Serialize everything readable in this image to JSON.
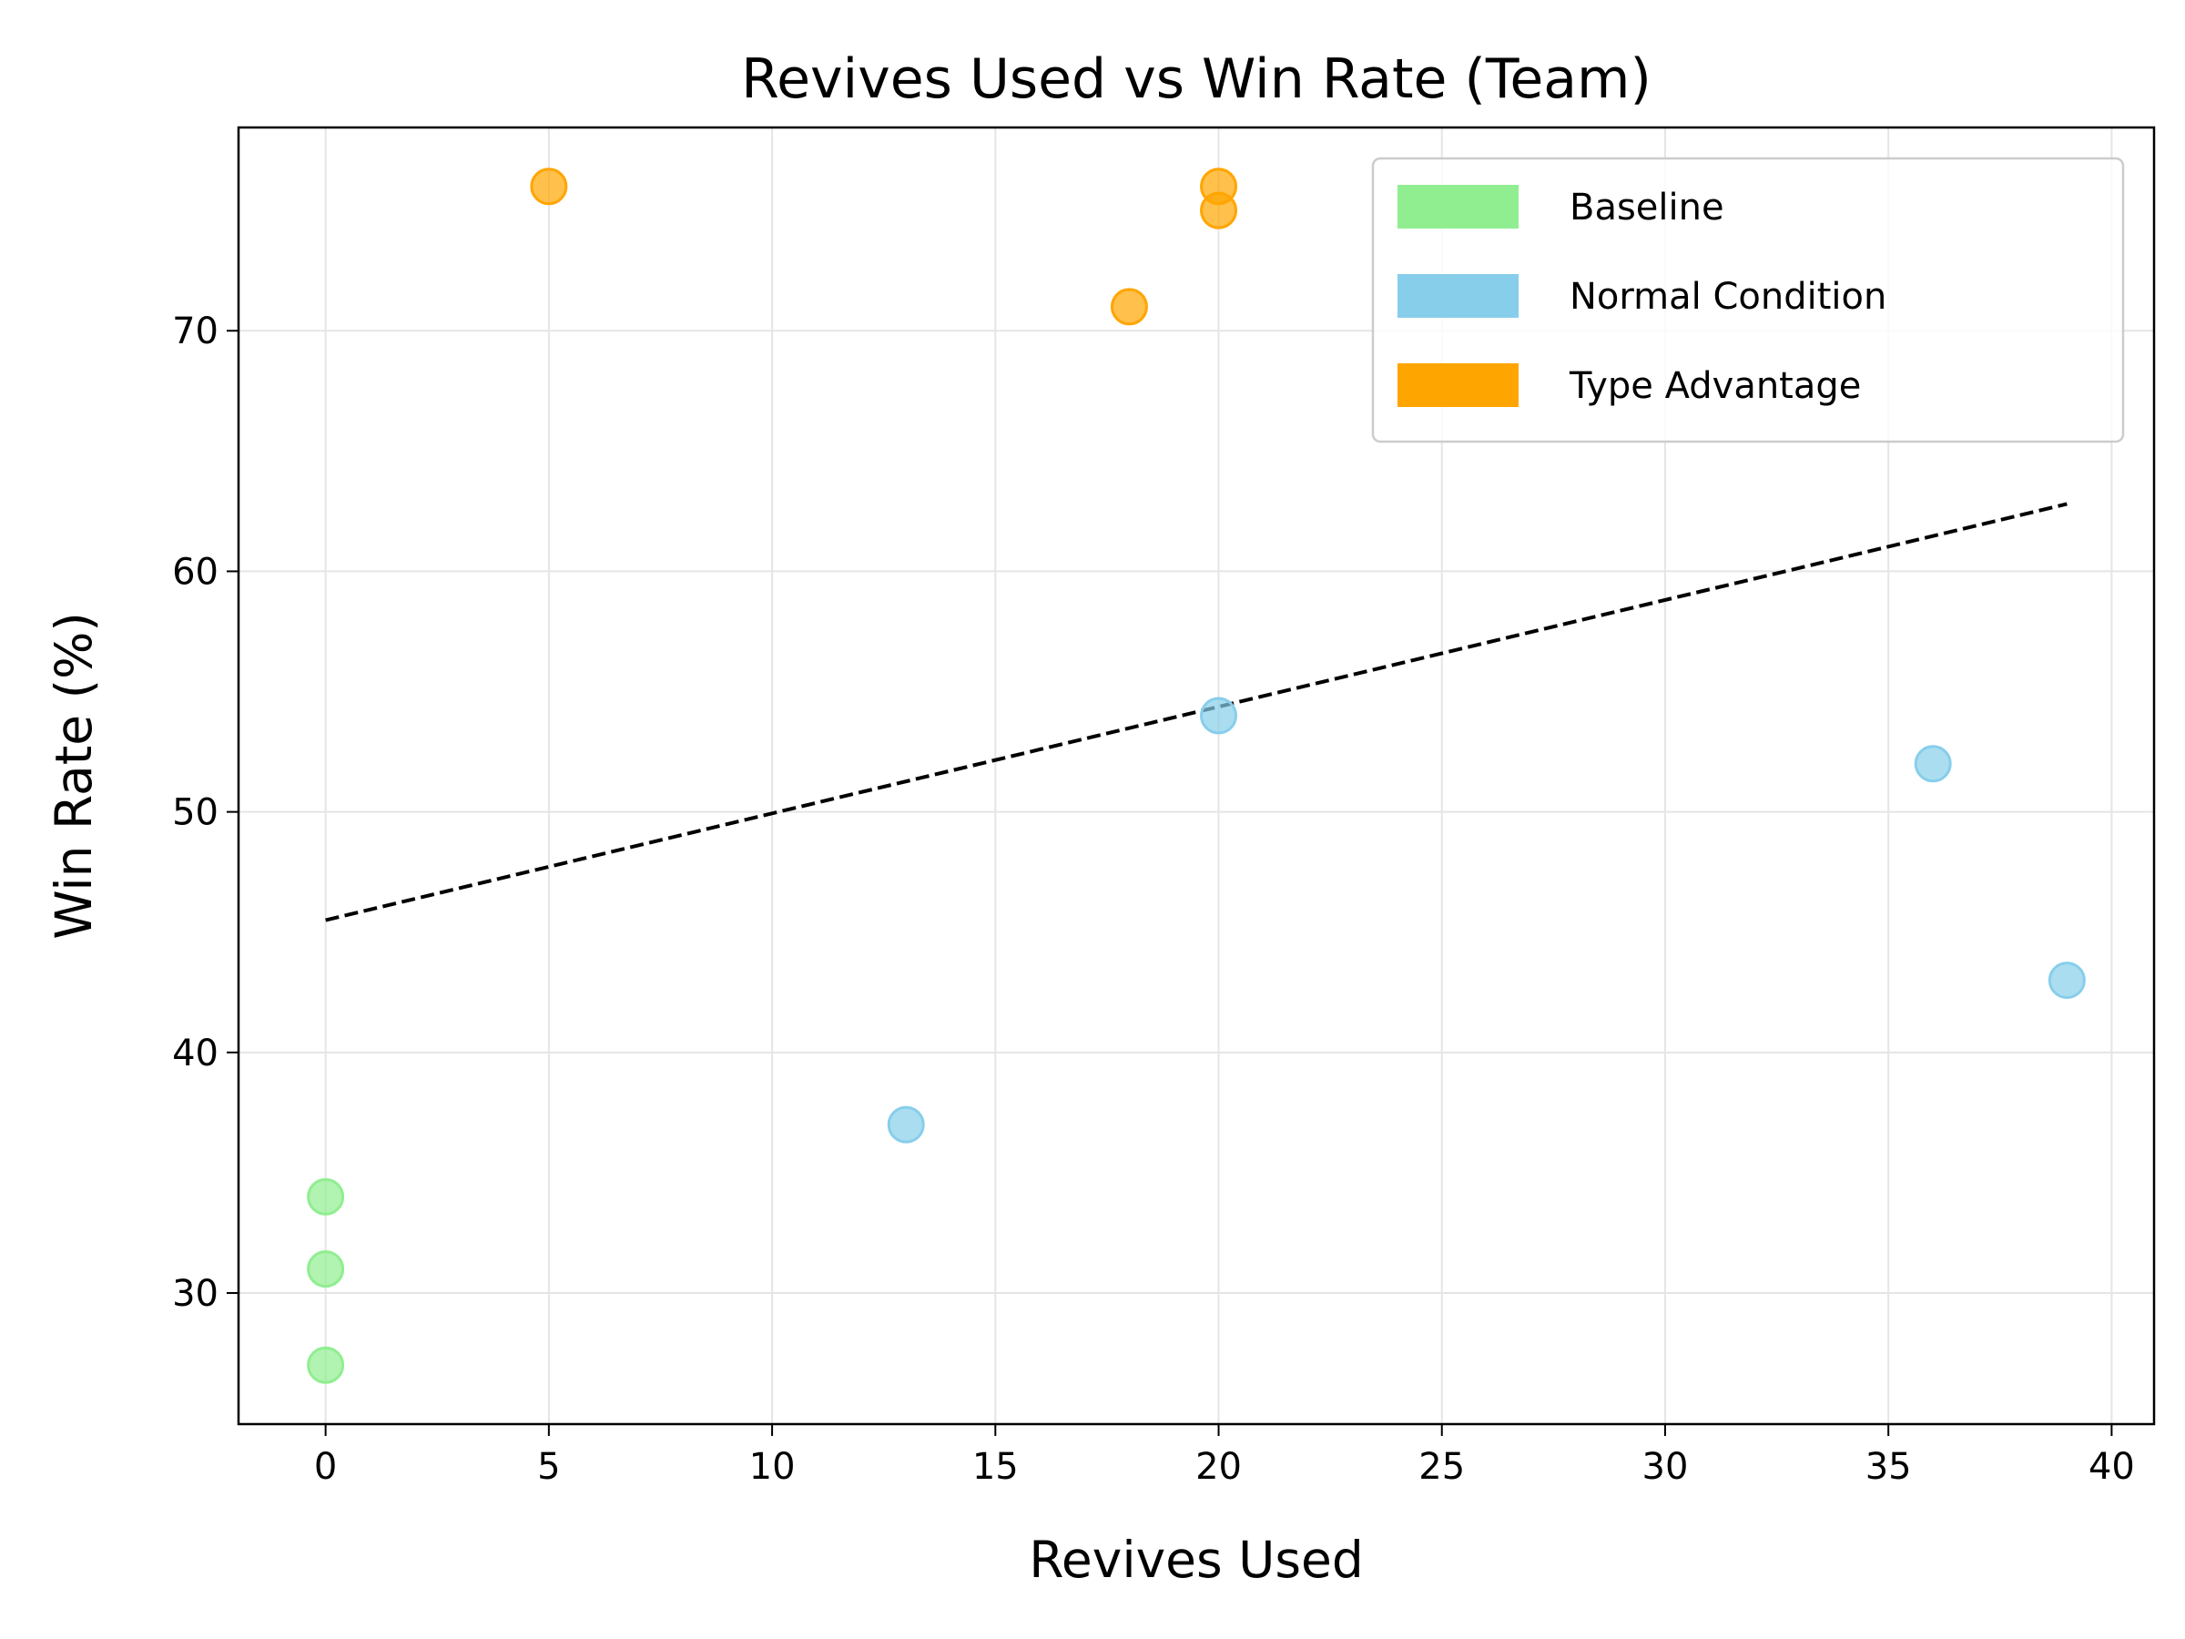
{
  "chart_data": {
    "type": "scatter",
    "title": "Revives Used vs Win Rate (Team)",
    "xlabel": "Revives Used",
    "ylabel": "Win Rate (%)",
    "xlim": [
      -1.95,
      40.95
    ],
    "ylim": [
      24.55,
      78.45
    ],
    "xticks": [
      0,
      5,
      10,
      15,
      20,
      25,
      30,
      35,
      40
    ],
    "yticks": [
      30,
      40,
      50,
      60,
      70
    ],
    "grid": true,
    "legend_position": "top-right",
    "series": [
      {
        "name": "Baseline",
        "color": "#90ee90",
        "points": [
          {
            "x": 0,
            "y": 34
          },
          {
            "x": 0,
            "y": 31
          },
          {
            "x": 0,
            "y": 27
          }
        ]
      },
      {
        "name": "Normal Condition",
        "color": "#87ceeb",
        "points": [
          {
            "x": 13,
            "y": 37
          },
          {
            "x": 20,
            "y": 54
          },
          {
            "x": 36,
            "y": 52
          },
          {
            "x": 39,
            "y": 43
          }
        ]
      },
      {
        "name": "Type Advantage",
        "color": "#ffa500",
        "points": [
          {
            "x": 5,
            "y": 76
          },
          {
            "x": 18,
            "y": 71
          },
          {
            "x": 20,
            "y": 76
          },
          {
            "x": 20,
            "y": 75
          }
        ]
      }
    ],
    "trendline": {
      "style": "dashed",
      "color": "#000000",
      "from": {
        "x": 0,
        "y": 45.5
      },
      "to": {
        "x": 39,
        "y": 62.8
      }
    }
  }
}
